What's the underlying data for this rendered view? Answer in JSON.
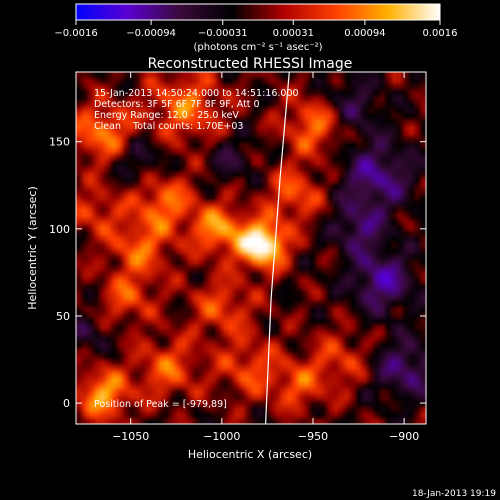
{
  "chart_data": {
    "type": "heatmap",
    "title": "Reconstructed RHESSI Image",
    "xlabel": "Heliocentric X (arcsec)",
    "ylabel": "Heliocentric Y (arcsec)",
    "xlim": [
      -1080,
      -888
    ],
    "ylim": [
      -12,
      190
    ],
    "x_ticks": [
      -1050,
      -1000,
      -950,
      -900
    ],
    "x_tick_labels": [
      "−1050",
      "−1000",
      "−950",
      "−900"
    ],
    "y_ticks": [
      0,
      50,
      100,
      150
    ],
    "y_tick_labels": [
      "0",
      "50",
      "100",
      "150"
    ],
    "colorbar": {
      "min": -0.0016,
      "max": 0.0016,
      "ticks": [
        -0.0016,
        -0.00094,
        -0.00031,
        0.00031,
        0.00094,
        0.0016
      ],
      "tick_labels": [
        "−0.0016",
        "−0.00094",
        "−0.00031",
        "0.00031",
        "0.00094",
        "0.0016"
      ],
      "unit_label": "(photons cm⁻² s⁻¹ asec⁻²)",
      "colormap": [
        "#0000ff",
        "#5a00d0",
        "#3a0a3a",
        "#000000",
        "#b00000",
        "#ff4000",
        "#ffb000",
        "#ffffff"
      ]
    },
    "annotations": [
      "15-Jan-2013 14:50:24.000 to 14:51:16.000",
      "Detectors: 3F 5F 6F 7F 8F 9F, Att 0",
      "Energy Range: 12.0 - 25.0 keV",
      "Clean    Total counts: 1.70E+03"
    ],
    "peak_label": "Position of Peak = [-979,89]",
    "peak": [
      -979,
      89
    ],
    "limb": [
      [
        -963,
        190
      ],
      [
        -968,
        130
      ],
      [
        -973,
        60
      ],
      [
        -976,
        -12
      ]
    ],
    "blobs": [
      [
        -978,
        91,
        9,
        1.0
      ],
      [
        -1002,
        100,
        10,
        0.55
      ],
      [
        -1032,
        115,
        12,
        0.45
      ],
      [
        -1065,
        155,
        12,
        0.5
      ],
      [
        -1020,
        170,
        14,
        0.45
      ],
      [
        -1045,
        88,
        12,
        0.4
      ],
      [
        -1000,
        55,
        12,
        0.35
      ],
      [
        -1052,
        60,
        10,
        0.35
      ],
      [
        -1065,
        5,
        10,
        0.6
      ],
      [
        -1030,
        20,
        12,
        0.4
      ],
      [
        -985,
        20,
        12,
        0.35
      ],
      [
        -960,
        120,
        11,
        0.4
      ],
      [
        -948,
        160,
        12,
        0.5
      ],
      [
        -958,
        10,
        10,
        0.35
      ],
      [
        -935,
        25,
        12,
        0.3
      ],
      [
        -1070,
        110,
        10,
        0.3
      ],
      [
        -915,
        130,
        14,
        -0.5
      ],
      [
        -912,
        70,
        12,
        -0.55
      ],
      [
        -900,
        20,
        12,
        -0.45
      ],
      [
        -930,
        170,
        12,
        -0.35
      ],
      [
        -925,
        100,
        10,
        -0.4
      ],
      [
        -1045,
        140,
        10,
        -0.3
      ],
      [
        -995,
        140,
        9,
        -0.25
      ],
      [
        -1075,
        40,
        8,
        -0.25
      ]
    ]
  },
  "footer": {
    "date": "18-Jan-2013 19:19"
  }
}
